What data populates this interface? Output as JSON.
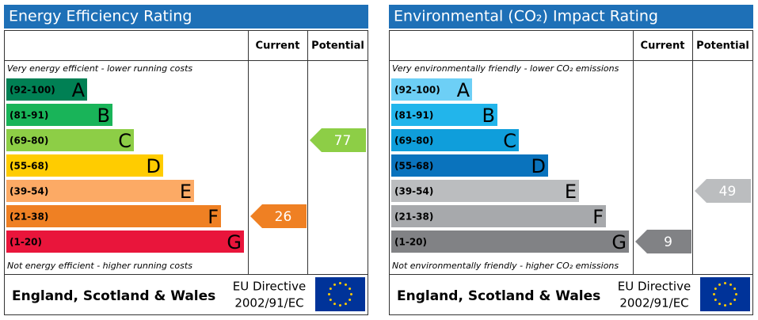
{
  "panels": [
    {
      "title": "Energy Efficiency Rating",
      "columns": [
        "Current",
        "Potential"
      ],
      "top_note": "Very energy efficient - lower running costs",
      "bottom_note": "Not energy efficient - higher running costs",
      "bands": [
        {
          "range": "(92-100)",
          "letter": "A",
          "color": "#008054"
        },
        {
          "range": "(81-91)",
          "letter": "B",
          "color": "#19b459"
        },
        {
          "range": "(69-80)",
          "letter": "C",
          "color": "#8dce46"
        },
        {
          "range": "(55-68)",
          "letter": "D",
          "color": "#ffcc00"
        },
        {
          "range": "(39-54)",
          "letter": "E",
          "color": "#fcaa65"
        },
        {
          "range": "(21-38)",
          "letter": "F",
          "color": "#ef8023"
        },
        {
          "range": "(1-20)",
          "letter": "G",
          "color": "#e9153b"
        }
      ],
      "current": 26,
      "potential": 77,
      "footer": {
        "region": "England, Scotland & Wales",
        "directive": [
          "EU Directive",
          "2002/91/EC"
        ]
      }
    },
    {
      "title": "Environmental (CO₂) Impact Rating",
      "columns": [
        "Current",
        "Potential"
      ],
      "top_note": "Very environmentally friendly - lower CO₂ emissions",
      "bottom_note": "Not environmentally friendly - higher CO₂ emissions",
      "bands": [
        {
          "range": "(92-100)",
          "letter": "A",
          "color": "#6dcff6"
        },
        {
          "range": "(81-91)",
          "letter": "B",
          "color": "#22b5eb"
        },
        {
          "range": "(69-80)",
          "letter": "C",
          "color": "#0f9edb"
        },
        {
          "range": "(55-68)",
          "letter": "D",
          "color": "#0a73bd"
        },
        {
          "range": "(39-54)",
          "letter": "E",
          "color": "#bbbdbf"
        },
        {
          "range": "(21-38)",
          "letter": "F",
          "color": "#a7a9ac"
        },
        {
          "range": "(1-20)",
          "letter": "G",
          "color": "#818285"
        }
      ],
      "current": 9,
      "potential": 49,
      "footer": {
        "region": "England, Scotland & Wales",
        "directive": [
          "EU Directive",
          "2002/91/EC"
        ]
      }
    }
  ]
}
